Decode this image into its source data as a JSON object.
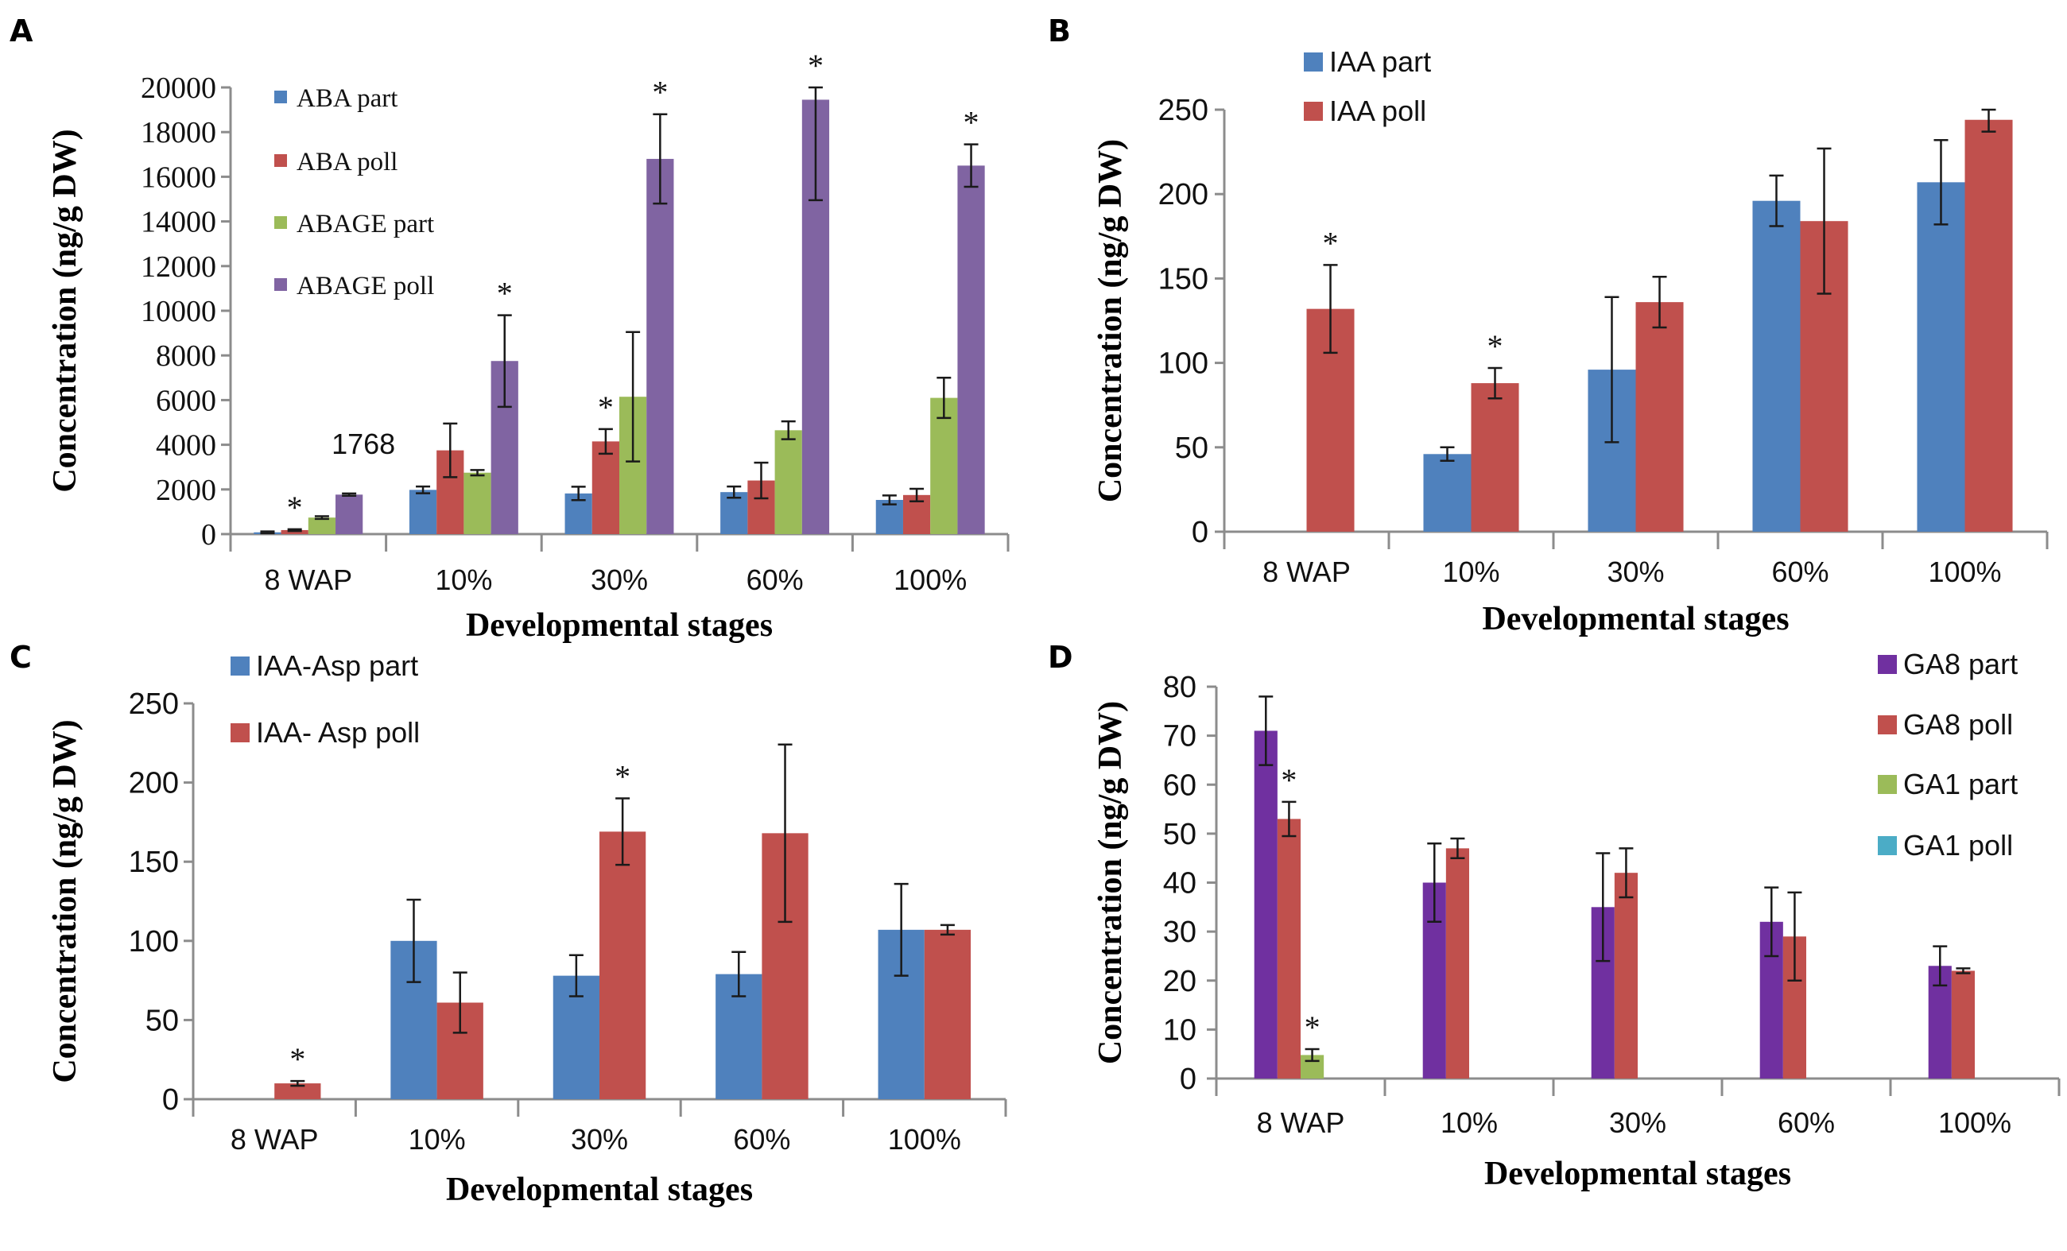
{
  "figure": {
    "panels": [
      "A",
      "B",
      "C",
      "D"
    ]
  },
  "chart_data": [
    {
      "panel": "A",
      "type": "bar",
      "title": "",
      "xlabel": "Developmental stages",
      "ylabel": "Concentration (ng/g DW)",
      "categories": [
        "8 WAP",
        "10%",
        "30%",
        "60%",
        "100%"
      ],
      "ylim": [
        0,
        20000
      ],
      "yticks": [
        0,
        2000,
        4000,
        6000,
        8000,
        10000,
        12000,
        14000,
        16000,
        18000,
        20000
      ],
      "grid": false,
      "legend_position": "top-left",
      "series": [
        {
          "name": "ABA part",
          "color": "#4f81bd",
          "values": [
            80,
            1980,
            1820,
            1880,
            1530
          ],
          "errors": [
            40,
            150,
            300,
            250,
            200
          ]
        },
        {
          "name": "ABA poll",
          "color": "#c0504d",
          "values": [
            180,
            3750,
            4150,
            2400,
            1750
          ],
          "errors": [
            40,
            1200,
            550,
            800,
            280
          ]
        },
        {
          "name": "ABAGE part",
          "color": "#9bbb59",
          "values": [
            740,
            2750,
            6150,
            4650,
            6100
          ],
          "errors": [
            60,
            120,
            2900,
            400,
            900
          ]
        },
        {
          "name": "ABAGE poll",
          "color": "#8064a2",
          "values": [
            1768,
            7750,
            16800,
            19450,
            16500
          ],
          "errors": [
            50,
            2050,
            2000,
            4500,
            950
          ]
        }
      ],
      "significance": [
        {
          "category": "8 WAP",
          "series": "ABA poll",
          "mark": "*"
        },
        {
          "category": "10%",
          "series": "ABAGE poll",
          "mark": "*"
        },
        {
          "category": "30%",
          "series": "ABA poll",
          "mark": "*"
        },
        {
          "category": "30%",
          "series": "ABAGE poll",
          "mark": "*"
        },
        {
          "category": "60%",
          "series": "ABAGE poll",
          "mark": "*"
        },
        {
          "category": "100%",
          "series": "ABAGE poll",
          "mark": "*"
        }
      ],
      "annotations": [
        {
          "category": "8 WAP",
          "series": "ABAGE poll",
          "text": "1768"
        }
      ]
    },
    {
      "panel": "B",
      "type": "bar",
      "title": "",
      "xlabel": "Developmental stages",
      "ylabel": "Concentration (ng/g DW)",
      "categories": [
        "8 WAP",
        "10%",
        "30%",
        "60%",
        "100%"
      ],
      "ylim": [
        0,
        250
      ],
      "yticks": [
        0,
        50,
        100,
        150,
        200,
        250
      ],
      "grid": false,
      "legend_position": "top-left",
      "series": [
        {
          "name": "IAA part",
          "color": "#4f81bd",
          "values": [
            0,
            46,
            96,
            196,
            207
          ],
          "errors": [
            0,
            4,
            43,
            15,
            25
          ]
        },
        {
          "name": "IAA poll",
          "color": "#c0504d",
          "values": [
            132,
            88,
            136,
            184,
            244
          ],
          "errors": [
            26,
            9,
            15,
            43,
            7
          ]
        }
      ],
      "significance": [
        {
          "category": "8 WAP",
          "series": "IAA poll",
          "mark": "*"
        },
        {
          "category": "10%",
          "series": "IAA poll",
          "mark": "*"
        }
      ]
    },
    {
      "panel": "C",
      "type": "bar",
      "title": "",
      "xlabel": "Developmental stages",
      "ylabel": "Concentration (ng/g DW)",
      "categories": [
        "8 WAP",
        "10%",
        "30%",
        "60%",
        "100%"
      ],
      "ylim": [
        0,
        250
      ],
      "yticks": [
        0,
        50,
        100,
        150,
        200,
        250
      ],
      "grid": false,
      "legend_position": "top-left",
      "series": [
        {
          "name": "IAA-Asp part",
          "color": "#4f81bd",
          "values": [
            0,
            100,
            78,
            79,
            107
          ],
          "errors": [
            0,
            26,
            13,
            14,
            29
          ]
        },
        {
          "name": "IAA- Asp poll",
          "color": "#c0504d",
          "values": [
            10,
            61,
            169,
            168,
            107
          ],
          "errors": [
            1.5,
            19,
            21,
            56,
            3
          ]
        }
      ],
      "significance": [
        {
          "category": "8 WAP",
          "series": "IAA- Asp poll",
          "mark": "*"
        },
        {
          "category": "30%",
          "series": "IAA- Asp poll",
          "mark": "*"
        }
      ]
    },
    {
      "panel": "D",
      "type": "bar",
      "title": "",
      "xlabel": "Developmental stages",
      "ylabel": "Concentration (ng/g DW)",
      "categories": [
        "8 WAP",
        "10%",
        "30%",
        "60%",
        "100%"
      ],
      "ylim": [
        0,
        80
      ],
      "yticks": [
        0,
        10,
        20,
        30,
        40,
        50,
        60,
        70,
        80
      ],
      "grid": false,
      "legend_position": "top-right",
      "series": [
        {
          "name": "GA8 part",
          "color": "#7030a0",
          "values": [
            71,
            40,
            35,
            32,
            23
          ],
          "errors": [
            7,
            8,
            11,
            7,
            4
          ]
        },
        {
          "name": "GA8 poll",
          "color": "#c0504d",
          "values": [
            53,
            47,
            42,
            29,
            22
          ],
          "errors": [
            3.5,
            2,
            5,
            9,
            0.5
          ]
        },
        {
          "name": "GA1 part",
          "color": "#9bbb59",
          "values": [
            4.8,
            0,
            0,
            0,
            0
          ],
          "errors": [
            1.2,
            0,
            0,
            0,
            0
          ]
        },
        {
          "name": "GA1 poll",
          "color": "#4bacc6",
          "values": [
            0,
            0,
            0,
            0,
            0
          ],
          "errors": [
            0,
            0,
            0,
            0,
            0
          ]
        }
      ],
      "significance": [
        {
          "category": "8 WAP",
          "series": "GA8 poll",
          "mark": "*"
        },
        {
          "category": "8 WAP",
          "series": "GA1 part",
          "mark": "*"
        }
      ]
    }
  ]
}
